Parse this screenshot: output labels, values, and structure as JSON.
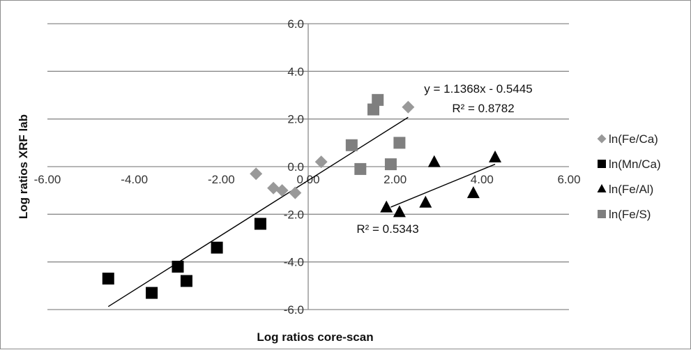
{
  "chart_data": {
    "type": "scatter",
    "xlabel": "Log ratios core-scan",
    "ylabel": "Log ratios XRF lab",
    "xlim": [
      -6,
      6
    ],
    "ylim": [
      -6,
      6
    ],
    "x_ticks": [
      "-6.00",
      "-4.00",
      "-2.00",
      "0.00",
      "2.00",
      "4.00",
      "6.00"
    ],
    "y_ticks": [
      "-6.0",
      "-4.0",
      "-2.0",
      "0.0",
      "2.0",
      "4.0",
      "6.0"
    ],
    "grid": "horizontal",
    "legend_position": "right",
    "series": [
      {
        "name": "ln(Fe/Ca)",
        "marker": "diamond",
        "color": "#999999",
        "points": [
          [
            -1.2,
            -0.3
          ],
          [
            -0.8,
            -0.9
          ],
          [
            -0.6,
            -1.0
          ],
          [
            -0.3,
            -1.1
          ],
          [
            0.3,
            0.2
          ],
          [
            2.3,
            2.5
          ]
        ]
      },
      {
        "name": "ln(Mn/Ca)",
        "marker": "square",
        "color": "#000000",
        "points": [
          [
            -4.6,
            -4.7
          ],
          [
            -3.6,
            -5.3
          ],
          [
            -3.0,
            -4.2
          ],
          [
            -2.8,
            -4.8
          ],
          [
            -2.1,
            -3.4
          ],
          [
            -1.1,
            -2.4
          ]
        ]
      },
      {
        "name": "ln(Fe/Al)",
        "marker": "triangle",
        "color": "#000000",
        "points": [
          [
            1.8,
            -1.7
          ],
          [
            2.1,
            -1.9
          ],
          [
            2.7,
            -1.5
          ],
          [
            2.9,
            0.2
          ],
          [
            3.8,
            -1.1
          ],
          [
            4.3,
            0.4
          ]
        ]
      },
      {
        "name": "ln(Fe/S)",
        "marker": "square",
        "color": "#7f7f7f",
        "points": [
          [
            1.0,
            0.9
          ],
          [
            1.2,
            -0.1
          ],
          [
            1.5,
            2.4
          ],
          [
            1.6,
            2.8
          ],
          [
            1.9,
            0.1
          ],
          [
            2.1,
            1.0
          ]
        ]
      }
    ],
    "trendlines": [
      {
        "x": [
          -4.6,
          2.3
        ],
        "y": [
          -5.8741,
          2.0701
        ]
      },
      {
        "x": [
          1.9,
          4.3
        ],
        "y": [
          -1.7,
          0.1
        ]
      }
    ],
    "annotations": {
      "equation": "y = 1.1368x - 0.5445",
      "r2_main": "R² = 0.8782",
      "r2_second": "R² = 0.5343"
    }
  }
}
